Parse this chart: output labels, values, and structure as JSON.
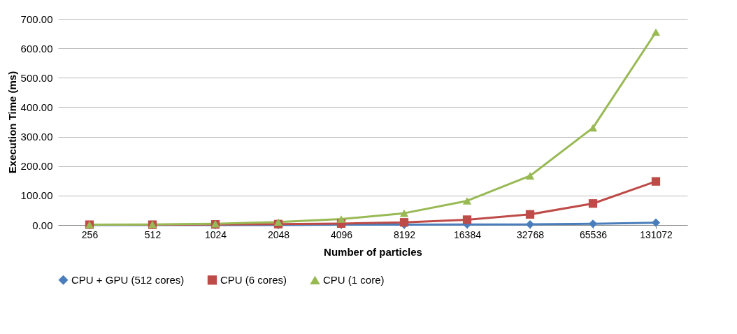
{
  "chart_data": {
    "type": "line",
    "xlabel": "Number of particles",
    "ylabel": "Execution Time (ms)",
    "categories": [
      "256",
      "512",
      "1024",
      "2048",
      "4096",
      "8192",
      "16384",
      "32768",
      "65536",
      "131072"
    ],
    "series": [
      {
        "name": "CPU + GPU (512 cores)",
        "color": "#4a7ebb",
        "marker": "diamond",
        "values": [
          0,
          0,
          0,
          0,
          1,
          1,
          2,
          2,
          4,
          8
        ]
      },
      {
        "name": "CPU (6 cores)",
        "color": "#be4b48",
        "marker": "square",
        "values": [
          1,
          1,
          2,
          3,
          5,
          9,
          18,
          36,
          73,
          148
        ]
      },
      {
        "name": "CPU (1 core)",
        "color": "#98b954",
        "marker": "triangle",
        "values": [
          1,
          2,
          4,
          10,
          20,
          40,
          82,
          167,
          330,
          655
        ]
      }
    ],
    "ylim": [
      0,
      700
    ],
    "yticks": [
      {
        "value": 0,
        "label": "0.00"
      },
      {
        "value": 100,
        "label": "100.00"
      },
      {
        "value": 200,
        "label": "200.00"
      },
      {
        "value": 300,
        "label": "300.00"
      },
      {
        "value": 400,
        "label": "400.00"
      },
      {
        "value": 500,
        "label": "500.00"
      },
      {
        "value": 600,
        "label": "600.00"
      },
      {
        "value": 700,
        "label": "700.00"
      }
    ],
    "grid": "y",
    "legend": "bottom",
    "line_style": "solid"
  }
}
